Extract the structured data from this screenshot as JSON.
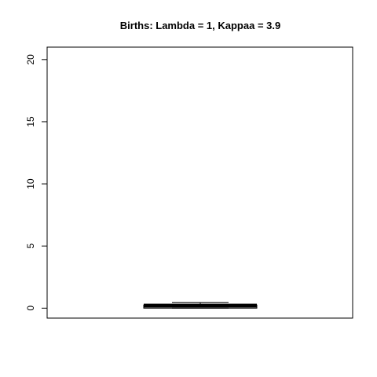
{
  "chart_data": {
    "type": "box",
    "title": "Births: Lambda = 1, Kappaa =  3.9",
    "xlabel": "",
    "ylabel": "",
    "ylim": [
      -0.8,
      21.0
    ],
    "yticks": [
      0,
      5,
      10,
      15,
      20
    ],
    "ytick_labels": [
      "0",
      "5",
      "10",
      "15",
      "20"
    ],
    "grid": false,
    "box": {
      "min": 0.0,
      "q1": 0.0,
      "median": 0.2,
      "q3": 0.25,
      "max": 0.45
    }
  }
}
